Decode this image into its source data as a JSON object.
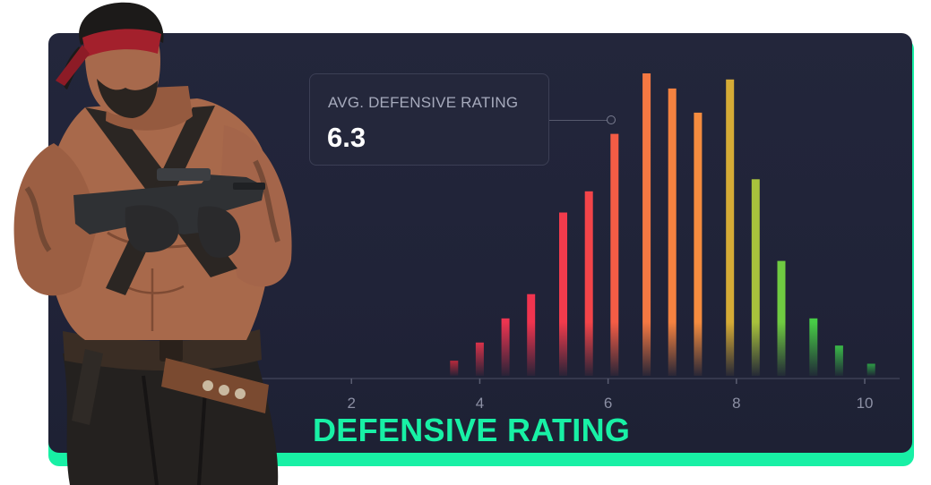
{
  "title": "DEFENSIVE RATING",
  "tooltip": {
    "label": "AVG. DEFENSIVE RATING",
    "value": "6.3"
  },
  "colors": {
    "accent": "#18f0a5",
    "panel": "#202338",
    "bar_red": "#f0344f",
    "bar_orange": "#f58240",
    "bar_yellow": "#d5ab36",
    "bar_green": "#47cc46"
  },
  "chart_data": {
    "type": "bar",
    "title": "DEFENSIVE RATING",
    "xlabel": "",
    "ylabel": "",
    "xlim": [
      0.6,
      10.6
    ],
    "xticks": [
      2,
      4,
      6,
      8,
      10
    ],
    "ylim": [
      0,
      100
    ],
    "grid": false,
    "highlight": {
      "label": "AVG. DEFENSIVE RATING",
      "value": 6.3
    },
    "x": [
      3.6,
      4.0,
      4.4,
      4.8,
      5.3,
      5.7,
      6.1,
      6.6,
      7.0,
      7.4,
      7.9,
      8.3,
      8.7,
      9.2,
      9.6,
      10.1
    ],
    "values": [
      5,
      11,
      19,
      27,
      54,
      61,
      80,
      100,
      95,
      87,
      98,
      65,
      38,
      19,
      10,
      4
    ],
    "colors": [
      "#b82a3c",
      "#d9324a",
      "#ec3450",
      "#f0344f",
      "#f23b4c",
      "#f34449",
      "#f45c45",
      "#f47842",
      "#f58240",
      "#f58c3f",
      "#d5ab36",
      "#a8c23c",
      "#6fcb41",
      "#47cc46",
      "#3aba48",
      "#2d9b45"
    ]
  }
}
